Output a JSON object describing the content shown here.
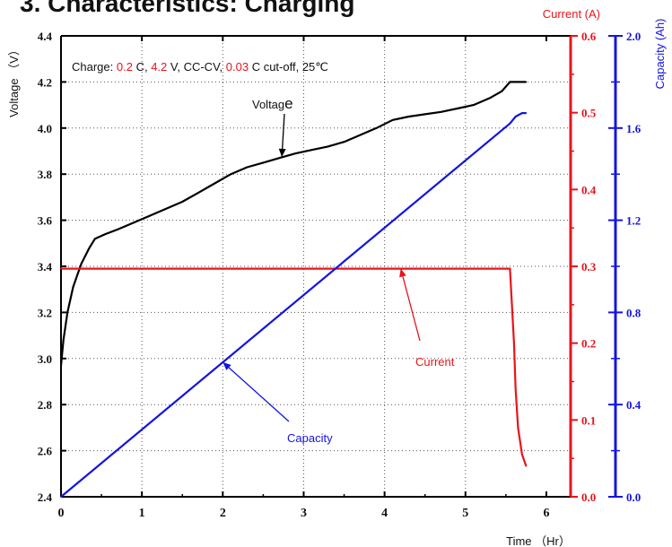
{
  "chart_data": {
    "type": "line",
    "title": "3. Characteristics: Charging",
    "note": {
      "prefix": "Charge: ",
      "rate": "0.2",
      "mid1": " C, ",
      "voltage": "4.2",
      "mid2": " V, CC-CV, ",
      "cutoff": "0.03",
      "suffix": " C cut-off, 25℃"
    },
    "xlabel": "Time （Hr）",
    "ylabel_left": "Voltage （V）",
    "ylabel_right_current": "Current (A)",
    "ylabel_right_capacity": "Capacity (Ah)",
    "xlim": [
      0,
      6.3
    ],
    "x_ticks": [
      "0",
      "1",
      "2",
      "3",
      "4",
      "5",
      "6"
    ],
    "ylim_voltage": [
      2.4,
      4.4
    ],
    "voltage_ticks": [
      "2.4",
      "2.6",
      "2.8",
      "3.0",
      "3.2",
      "3.4",
      "3.6",
      "3.8",
      "4.0",
      "4.2",
      "4.4"
    ],
    "ylim_current": [
      0.0,
      0.6
    ],
    "current_ticks": [
      "0.0",
      "0.1",
      "0.2",
      "0.3",
      "0.4",
      "0.5",
      "0.6"
    ],
    "ylim_capacity": [
      0.0,
      2.0
    ],
    "capacity_ticks": [
      "0.0",
      "0.4",
      "0.8",
      "1.2",
      "1.6",
      "2.0"
    ],
    "grid": true,
    "colors": {
      "voltage": "#000000",
      "current": "#e8141a",
      "capacity": "#1414e0"
    },
    "series": [
      {
        "name": "Voltage",
        "axis": "voltage",
        "x": [
          0,
          0.03,
          0.08,
          0.15,
          0.25,
          0.35,
          0.42,
          0.55,
          0.7,
          0.9,
          1.1,
          1.3,
          1.5,
          1.7,
          1.9,
          2.1,
          2.3,
          2.5,
          2.7,
          2.9,
          3.1,
          3.3,
          3.5,
          3.7,
          3.9,
          4.1,
          4.3,
          4.5,
          4.7,
          4.9,
          5.1,
          5.3,
          5.45,
          5.55,
          5.65,
          5.75
        ],
        "values": [
          2.97,
          3.08,
          3.2,
          3.31,
          3.41,
          3.48,
          3.52,
          3.54,
          3.56,
          3.59,
          3.62,
          3.65,
          3.68,
          3.72,
          3.76,
          3.8,
          3.83,
          3.85,
          3.87,
          3.89,
          3.905,
          3.92,
          3.94,
          3.97,
          4.0,
          4.035,
          4.05,
          4.06,
          4.07,
          4.085,
          4.1,
          4.13,
          4.16,
          4.2,
          4.2,
          4.2
        ]
      },
      {
        "name": "Current",
        "axis": "current",
        "x": [
          0,
          5.55,
          5.6,
          5.62,
          5.65,
          5.7,
          5.75
        ],
        "values": [
          0.297,
          0.297,
          0.2,
          0.14,
          0.09,
          0.055,
          0.04
        ]
      },
      {
        "name": "Capacity",
        "axis": "capacity",
        "x": [
          0,
          5.55,
          5.62,
          5.7,
          5.75
        ],
        "values": [
          0.0,
          1.62,
          1.65,
          1.665,
          1.665
        ]
      }
    ],
    "annotations": [
      {
        "text": "Voltag",
        "text_big": "e",
        "series": "Voltage"
      },
      {
        "text": "Current",
        "series": "Current"
      },
      {
        "text": "Capacity",
        "series": "Capacity"
      }
    ]
  }
}
